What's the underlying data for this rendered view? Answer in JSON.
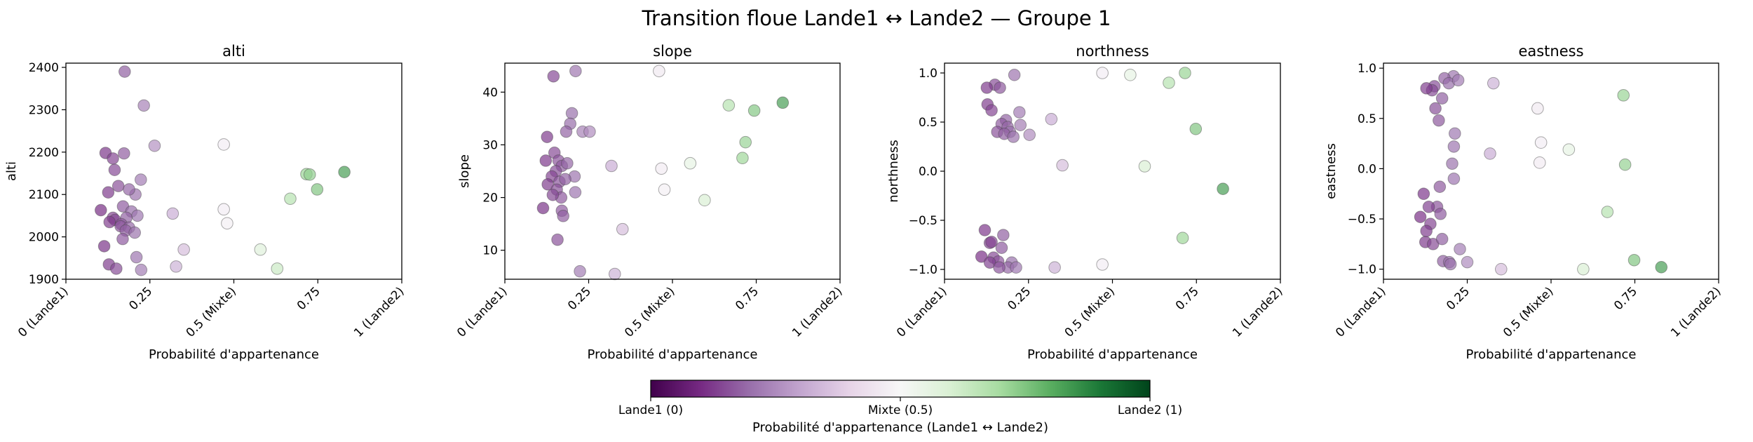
{
  "figure": {
    "title": "Transition floue Lande1 ↔ Lande2 — Groupe 1"
  },
  "chart_data": [
    {
      "type": "scatter",
      "title": "alti",
      "xlabel": "Probabilité d'appartenance",
      "ylabel": "alti",
      "xlim": [
        0,
        1
      ],
      "ylim": [
        1900,
        2410
      ],
      "xticks": [
        0,
        0.25,
        0.5,
        0.75,
        1
      ],
      "xticklabels": [
        "0 (Lande1)",
        "0.25",
        "0.5 (Mixte)",
        "0.75",
        "1 (Lande2)"
      ],
      "yticks": [
        1900,
        2000,
        2100,
        2200,
        2300,
        2400
      ],
      "grid": false,
      "x": [
        0.175,
        0.232,
        0.264,
        0.118,
        0.14,
        0.173,
        0.223,
        0.145,
        0.156,
        0.207,
        0.188,
        0.104,
        0.126,
        0.17,
        0.195,
        0.213,
        0.14,
        0.18,
        0.146,
        0.165,
        0.13,
        0.163,
        0.188,
        0.178,
        0.205,
        0.169,
        0.114,
        0.21,
        0.128,
        0.15,
        0.224,
        0.318,
        0.351,
        0.328,
        0.47,
        0.47,
        0.48,
        0.579,
        0.629,
        0.716,
        0.726,
        0.668,
        0.748,
        0.829
      ],
      "y": [
        2390,
        2310,
        2215,
        2198,
        2185,
        2197,
        2135,
        2158,
        2120,
        2100,
        2112,
        2063,
        2105,
        2072,
        2060,
        2050,
        2045,
        2045,
        2040,
        2030,
        2035,
        2025,
        2022,
        2015,
        2010,
        1995,
        1978,
        1952,
        1935,
        1925,
        1922,
        2055,
        1970,
        1930,
        2218,
        2065,
        2032,
        1970,
        1925,
        2148,
        2147,
        2090,
        2112,
        2153
      ],
      "p": [
        0.175,
        0.232,
        0.264,
        0.118,
        0.14,
        0.173,
        0.223,
        0.145,
        0.156,
        0.207,
        0.188,
        0.104,
        0.126,
        0.17,
        0.195,
        0.213,
        0.14,
        0.18,
        0.146,
        0.165,
        0.13,
        0.163,
        0.188,
        0.178,
        0.205,
        0.169,
        0.114,
        0.21,
        0.128,
        0.15,
        0.224,
        0.318,
        0.351,
        0.328,
        0.47,
        0.47,
        0.48,
        0.579,
        0.629,
        0.716,
        0.726,
        0.668,
        0.748,
        0.829
      ]
    },
    {
      "type": "scatter",
      "title": "slope",
      "xlabel": "Probabilité d'appartenance",
      "ylabel": "slope",
      "xlim": [
        0,
        1
      ],
      "ylim": [
        4.5,
        45.5
      ],
      "xticks": [
        0,
        0.25,
        0.5,
        0.75,
        1
      ],
      "xticklabels": [
        "0 (Lande1)",
        "0.25",
        "0.5 (Mixte)",
        "0.75",
        "1 (Lande2)"
      ],
      "yticks": [
        10,
        20,
        30,
        40
      ],
      "grid": false,
      "x": [
        0.145,
        0.211,
        0.2,
        0.195,
        0.126,
        0.183,
        0.232,
        0.253,
        0.148,
        0.16,
        0.122,
        0.17,
        0.186,
        0.152,
        0.208,
        0.14,
        0.163,
        0.18,
        0.128,
        0.21,
        0.155,
        0.168,
        0.143,
        0.114,
        0.17,
        0.174,
        0.157,
        0.224,
        0.318,
        0.351,
        0.328,
        0.46,
        0.467,
        0.476,
        0.553,
        0.596,
        0.668,
        0.718,
        0.744,
        0.709,
        0.829
      ],
      "y": [
        43,
        44,
        36,
        34,
        31.5,
        32.5,
        32.5,
        32.5,
        28.5,
        27,
        27,
        26,
        26.5,
        25,
        24,
        24,
        23,
        23.5,
        22.5,
        21,
        21.5,
        20,
        20.5,
        18,
        17.5,
        16.5,
        12,
        6,
        26,
        14,
        5.5,
        44,
        25.5,
        21.5,
        26.5,
        19.5,
        37.5,
        30.5,
        36.5,
        27.5,
        38
      ],
      "p": [
        0.145,
        0.211,
        0.2,
        0.195,
        0.126,
        0.183,
        0.232,
        0.253,
        0.148,
        0.16,
        0.122,
        0.17,
        0.186,
        0.152,
        0.208,
        0.14,
        0.163,
        0.18,
        0.128,
        0.21,
        0.155,
        0.168,
        0.143,
        0.114,
        0.17,
        0.174,
        0.157,
        0.224,
        0.318,
        0.351,
        0.328,
        0.46,
        0.467,
        0.476,
        0.553,
        0.596,
        0.668,
        0.718,
        0.744,
        0.709,
        0.829
      ]
    },
    {
      "type": "scatter",
      "title": "northness",
      "xlabel": "Probabilité d'appartenance",
      "ylabel": "northness",
      "xlim": [
        0,
        1
      ],
      "ylim": [
        -1.1,
        1.1
      ],
      "xticks": [
        0,
        0.25,
        0.5,
        0.75,
        1
      ],
      "xticklabels": [
        "0 (Lande1)",
        "0.25",
        "0.5 (Mixte)",
        "0.75",
        "1 (Lande2)"
      ],
      "yticks": [
        -1.0,
        -0.5,
        0.0,
        0.5,
        1.0
      ],
      "yticklabels": [
        "−1.0",
        "−0.5",
        "0.0",
        "0.5",
        "1.0"
      ],
      "grid": false,
      "x": [
        0.208,
        0.15,
        0.126,
        0.165,
        0.128,
        0.14,
        0.223,
        0.183,
        0.17,
        0.188,
        0.226,
        0.157,
        0.195,
        0.178,
        0.253,
        0.205,
        0.12,
        0.175,
        0.135,
        0.14,
        0.17,
        0.11,
        0.146,
        0.16,
        0.135,
        0.2,
        0.189,
        0.213,
        0.163,
        0.318,
        0.351,
        0.328,
        0.47,
        0.47,
        0.553,
        0.596,
        0.668,
        0.716,
        0.748,
        0.709,
        0.829
      ],
      "y": [
        0.98,
        0.88,
        0.85,
        0.85,
        0.68,
        0.62,
        0.6,
        0.52,
        0.48,
        0.45,
        0.47,
        0.4,
        0.4,
        0.38,
        0.37,
        0.35,
        -0.6,
        -0.65,
        -0.73,
        -0.72,
        -0.78,
        -0.87,
        -0.88,
        -0.92,
        -0.93,
        -0.93,
        -0.98,
        -0.98,
        -0.98,
        0.53,
        0.06,
        -0.98,
        1.0,
        -0.95,
        0.98,
        0.05,
        0.9,
        1.0,
        0.43,
        -0.68,
        -0.18
      ],
      "p": [
        0.208,
        0.15,
        0.126,
        0.165,
        0.128,
        0.14,
        0.223,
        0.183,
        0.17,
        0.188,
        0.226,
        0.157,
        0.195,
        0.178,
        0.253,
        0.205,
        0.12,
        0.175,
        0.135,
        0.14,
        0.17,
        0.11,
        0.146,
        0.16,
        0.135,
        0.2,
        0.189,
        0.213,
        0.163,
        0.318,
        0.351,
        0.328,
        0.47,
        0.47,
        0.553,
        0.596,
        0.668,
        0.716,
        0.748,
        0.709,
        0.829
      ]
    },
    {
      "type": "scatter",
      "title": "eastness",
      "xlabel": "Probabilité d'appartenance",
      "ylabel": "eastness",
      "xlim": [
        0,
        1
      ],
      "ylim": [
        -1.1,
        1.05
      ],
      "xticks": [
        0,
        0.25,
        0.5,
        0.75,
        1
      ],
      "xticklabels": [
        "0 (Lande1)",
        "0.25",
        "0.5 (Mixte)",
        "0.75",
        "1 (Lande2)"
      ],
      "yticks": [
        -1.0,
        -0.5,
        0.0,
        0.5,
        1.0
      ],
      "yticklabels": [
        "−1.0",
        "−0.5",
        "0.0",
        "0.5",
        "1.0"
      ],
      "grid": false,
      "x": [
        0.209,
        0.182,
        0.195,
        0.223,
        0.152,
        0.145,
        0.128,
        0.175,
        0.155,
        0.165,
        0.213,
        0.21,
        0.205,
        0.21,
        0.12,
        0.168,
        0.16,
        0.135,
        0.14,
        0.17,
        0.11,
        0.125,
        0.148,
        0.128,
        0.175,
        0.178,
        0.228,
        0.196,
        0.2,
        0.25,
        0.318,
        0.351,
        0.328,
        0.46,
        0.47,
        0.466,
        0.553,
        0.596,
        0.668,
        0.716,
        0.721,
        0.748,
        0.829
      ],
      "y": [
        0.92,
        0.9,
        0.85,
        0.88,
        0.82,
        0.78,
        0.8,
        0.7,
        0.6,
        0.48,
        0.35,
        0.22,
        0.05,
        -0.1,
        -0.25,
        -0.18,
        -0.38,
        -0.38,
        -0.55,
        -0.45,
        -0.48,
        -0.73,
        -0.75,
        -0.62,
        -0.7,
        -0.92,
        -0.8,
        -0.93,
        -0.95,
        -0.93,
        0.15,
        -1.0,
        0.85,
        0.6,
        0.26,
        0.06,
        0.19,
        -1.0,
        -0.43,
        0.73,
        0.04,
        -0.91,
        -0.98
      ],
      "p": [
        0.209,
        0.182,
        0.195,
        0.223,
        0.152,
        0.145,
        0.128,
        0.175,
        0.155,
        0.165,
        0.213,
        0.21,
        0.205,
        0.21,
        0.12,
        0.168,
        0.16,
        0.135,
        0.14,
        0.17,
        0.11,
        0.125,
        0.148,
        0.128,
        0.175,
        0.178,
        0.228,
        0.196,
        0.2,
        0.25,
        0.318,
        0.351,
        0.328,
        0.46,
        0.47,
        0.466,
        0.553,
        0.596,
        0.668,
        0.716,
        0.721,
        0.748,
        0.829
      ]
    }
  ],
  "colorbar": {
    "label": "Probabilité d'appartenance (Lande1 ↔ Lande2)",
    "ticks": [
      0,
      0.5,
      1
    ],
    "ticklabels": [
      "Lande1 (0)",
      "Mixte (0.5)",
      "Lande2 (1)"
    ],
    "colors": [
      "#40004b",
      "#762a83",
      "#9970ab",
      "#c2a5cf",
      "#e7d4e8",
      "#f7f7f7",
      "#d9f0d3",
      "#a6dba0",
      "#5aae61",
      "#1b7837",
      "#00441b"
    ]
  }
}
